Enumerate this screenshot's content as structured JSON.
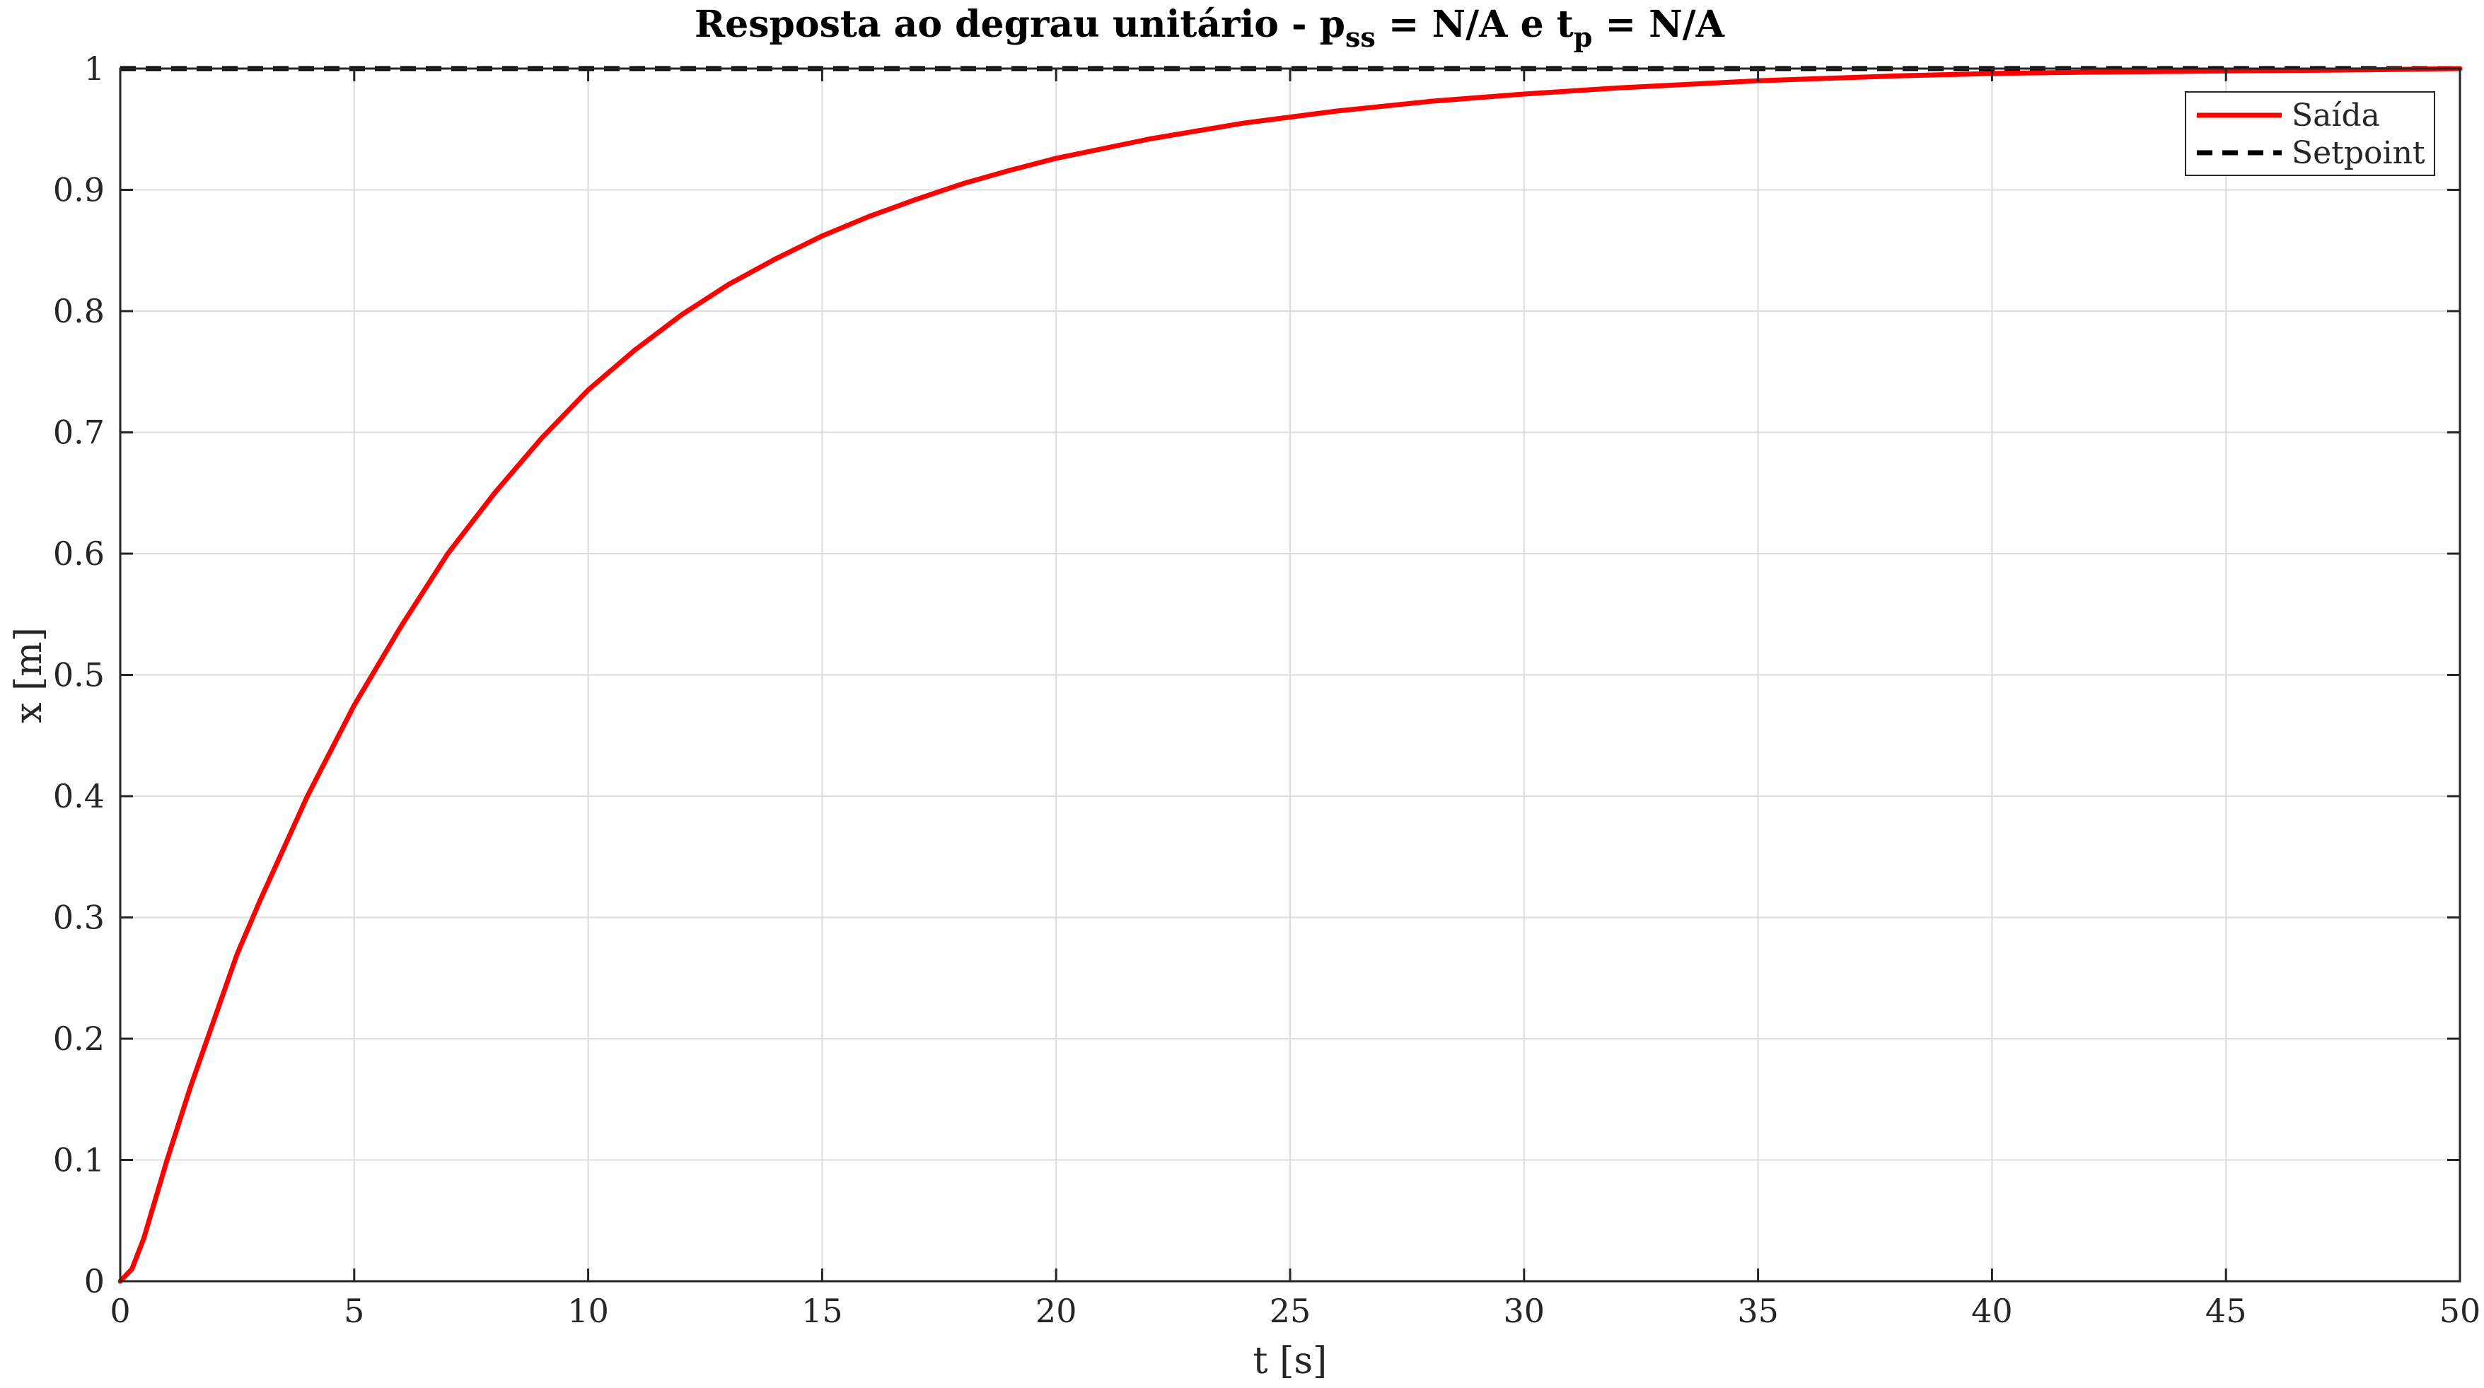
{
  "chart_data": {
    "type": "line",
    "title": {
      "prefix": "Resposta ao degrau unitário - p",
      "sub1": "ss",
      "mid": " = N/A e t",
      "sub2": "p",
      "suffix": " = N/A"
    },
    "xlabel": "t [s]",
    "ylabel": "x [m]",
    "xlim": [
      0,
      50
    ],
    "ylim": [
      0,
      1
    ],
    "xticks": [
      0,
      5,
      10,
      15,
      20,
      25,
      30,
      35,
      40,
      45,
      50
    ],
    "xtick_labels": [
      "0",
      "5",
      "10",
      "15",
      "20",
      "25",
      "30",
      "35",
      "40",
      "45",
      "50"
    ],
    "yticks": [
      0,
      0.1,
      0.2,
      0.3,
      0.4,
      0.5,
      0.6,
      0.7,
      0.8,
      0.9,
      1
    ],
    "ytick_labels": [
      "0",
      "0.1",
      "0.2",
      "0.3",
      "0.4",
      "0.5",
      "0.6",
      "0.7",
      "0.8",
      "0.9",
      "1"
    ],
    "grid": true,
    "legend_position": "top-right",
    "series": [
      {
        "name": "Saída",
        "color": "#ff0000",
        "style": "solid",
        "x": [
          0,
          0.25,
          0.5,
          1,
          1.5,
          2,
          2.5,
          3,
          4,
          5,
          6,
          7,
          8,
          9,
          10,
          11,
          12,
          13,
          14,
          15,
          16,
          17,
          18,
          19,
          20,
          22,
          24,
          26,
          28,
          30,
          32,
          35,
          38,
          40,
          42,
          45,
          48,
          50
        ],
        "y": [
          0,
          0.01,
          0.035,
          0.1,
          0.16,
          0.215,
          0.27,
          0.315,
          0.4,
          0.475,
          0.54,
          0.6,
          0.65,
          0.695,
          0.735,
          0.768,
          0.797,
          0.822,
          0.843,
          0.862,
          0.878,
          0.892,
          0.905,
          0.916,
          0.926,
          0.942,
          0.955,
          0.965,
          0.973,
          0.979,
          0.984,
          0.99,
          0.994,
          0.996,
          0.997,
          0.998,
          0.999,
          1.0
        ]
      },
      {
        "name": "Setpoint",
        "color": "#000000",
        "style": "dashed",
        "x": [
          0,
          50
        ],
        "y": [
          1,
          1
        ]
      }
    ]
  }
}
